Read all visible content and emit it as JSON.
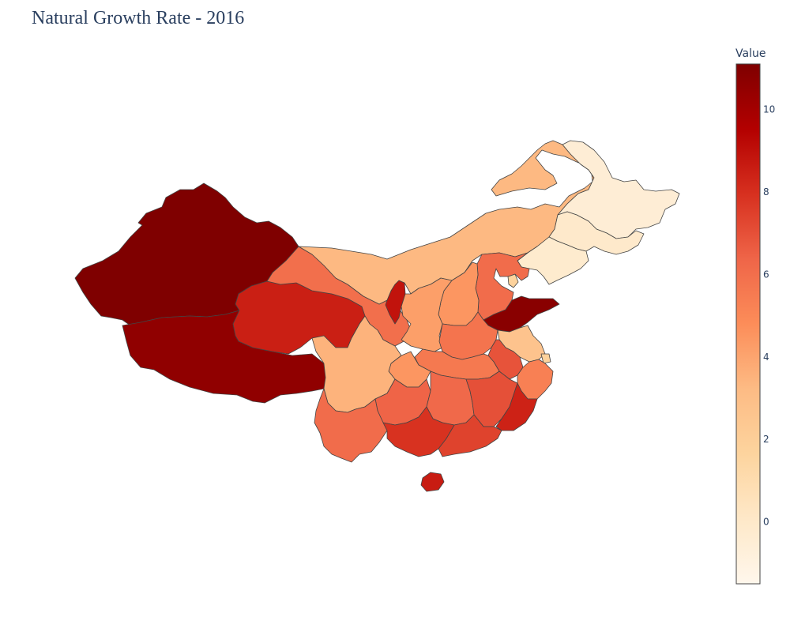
{
  "title": "Natural Growth Rate - 2016",
  "colorbar": {
    "title": "Value",
    "min": -1.5,
    "max": 11.1,
    "ticks": [
      {
        "value": 10,
        "label": "10"
      },
      {
        "value": 8,
        "label": "8"
      },
      {
        "value": 6,
        "label": "6"
      },
      {
        "value": 4,
        "label": "4"
      },
      {
        "value": 2,
        "label": "2"
      },
      {
        "value": 0,
        "label": "0"
      }
    ],
    "colorscale": [
      {
        "pos": 0.0,
        "color": "#fff7ec"
      },
      {
        "pos": 0.125,
        "color": "#fee8c8"
      },
      {
        "pos": 0.25,
        "color": "#fdd49e"
      },
      {
        "pos": 0.375,
        "color": "#fdbb84"
      },
      {
        "pos": 0.5,
        "color": "#fc8d59"
      },
      {
        "pos": 0.625,
        "color": "#ef6548"
      },
      {
        "pos": 0.75,
        "color": "#d7301f"
      },
      {
        "pos": 0.875,
        "color": "#b30000"
      },
      {
        "pos": 1.0,
        "color": "#7f0000"
      }
    ]
  },
  "chart_data": {
    "type": "choropleth",
    "colorscale_name": "OrRd",
    "zlim": [
      -1.5,
      11.1
    ],
    "legend": "colorbar-right",
    "regions": [
      {
        "name": "Xinjiang",
        "value": 11.1
      },
      {
        "name": "Tibet",
        "value": 10.6
      },
      {
        "name": "Qinghai",
        "value": 8.5
      },
      {
        "name": "Gansu",
        "value": 6.0
      },
      {
        "name": "Ningxia",
        "value": 8.9
      },
      {
        "name": "Inner Mongolia",
        "value": 3.3
      },
      {
        "name": "Heilongjiang",
        "value": -0.5
      },
      {
        "name": "Jilin",
        "value": -0.05
      },
      {
        "name": "Liaoning",
        "value": -0.2
      },
      {
        "name": "Beijing",
        "value": 4.1
      },
      {
        "name": "Tianjin",
        "value": 1.8
      },
      {
        "name": "Hebei",
        "value": 6.1
      },
      {
        "name": "Shanxi",
        "value": 4.5
      },
      {
        "name": "Shaanxi",
        "value": 4.2
      },
      {
        "name": "Shandong",
        "value": 10.8
      },
      {
        "name": "Henan",
        "value": 5.8
      },
      {
        "name": "Jiangsu",
        "value": 2.7
      },
      {
        "name": "Anhui",
        "value": 6.9
      },
      {
        "name": "Shanghai",
        "value": 1.8
      },
      {
        "name": "Zhejiang",
        "value": 5.3
      },
      {
        "name": "Hubei",
        "value": 5.6
      },
      {
        "name": "Chongqing",
        "value": 4.5
      },
      {
        "name": "Sichuan",
        "value": 3.5
      },
      {
        "name": "Guizhou",
        "value": 6.4
      },
      {
        "name": "Yunnan",
        "value": 6.1
      },
      {
        "name": "Hunan",
        "value": 6.2
      },
      {
        "name": "Jiangxi",
        "value": 7.0
      },
      {
        "name": "Fujian",
        "value": 8.4
      },
      {
        "name": "Guangdong",
        "value": 7.4
      },
      {
        "name": "Guangxi",
        "value": 7.9
      },
      {
        "name": "Hainan",
        "value": 8.6
      }
    ]
  }
}
